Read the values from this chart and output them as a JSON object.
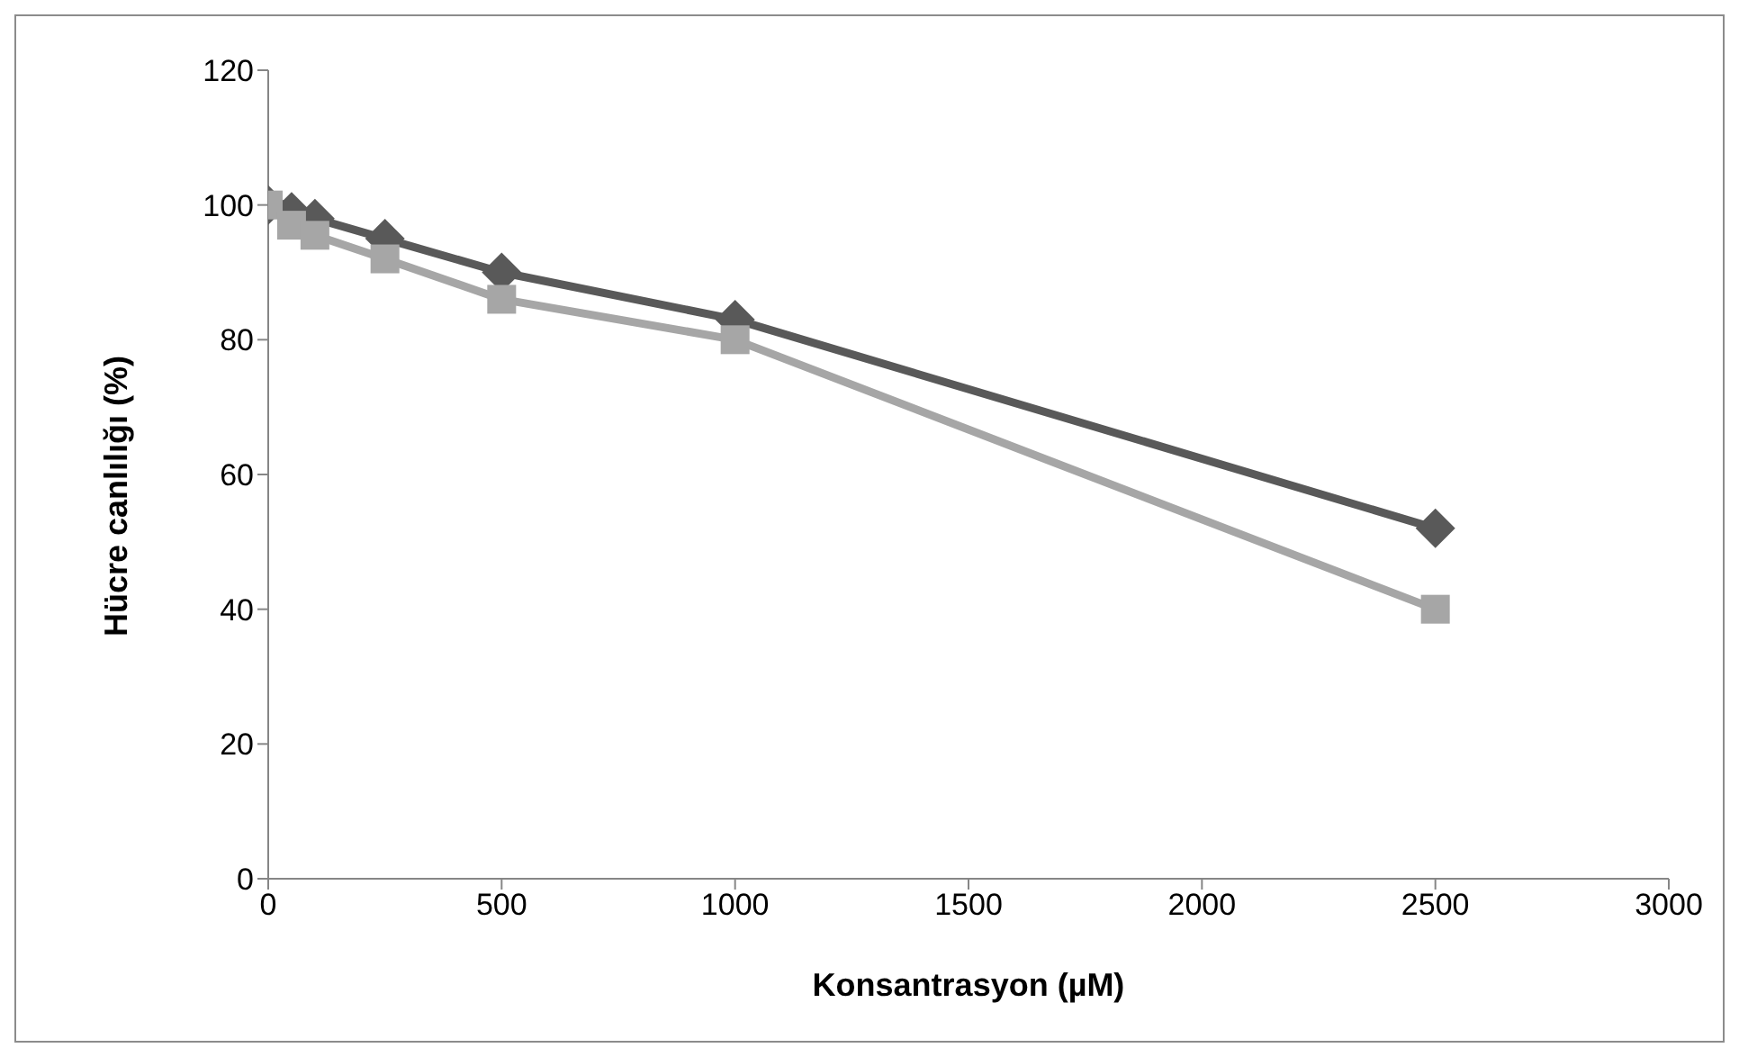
{
  "chart_data": {
    "type": "line",
    "xlabel": "Konsantrasyon (µM)",
    "ylabel": "Hücre canlılığı (%)",
    "x": [
      0,
      50,
      100,
      250,
      500,
      1000,
      2500
    ],
    "series": [
      {
        "color": "#595959",
        "marker": "diamond",
        "values": [
          100,
          99,
          98,
          95,
          90,
          83,
          52
        ]
      },
      {
        "color": "#a6a6a6",
        "marker": "square",
        "values": [
          100,
          97,
          95.5,
          92,
          86,
          80,
          40
        ]
      }
    ],
    "xlim": [
      0,
      3000
    ],
    "xticks": [
      0,
      500,
      1000,
      1500,
      2000,
      2500,
      3000
    ],
    "ylim": [
      0,
      120
    ],
    "yticks": [
      0,
      20,
      40,
      60,
      80,
      100,
      120
    ],
    "grid": false,
    "legend": false
  }
}
